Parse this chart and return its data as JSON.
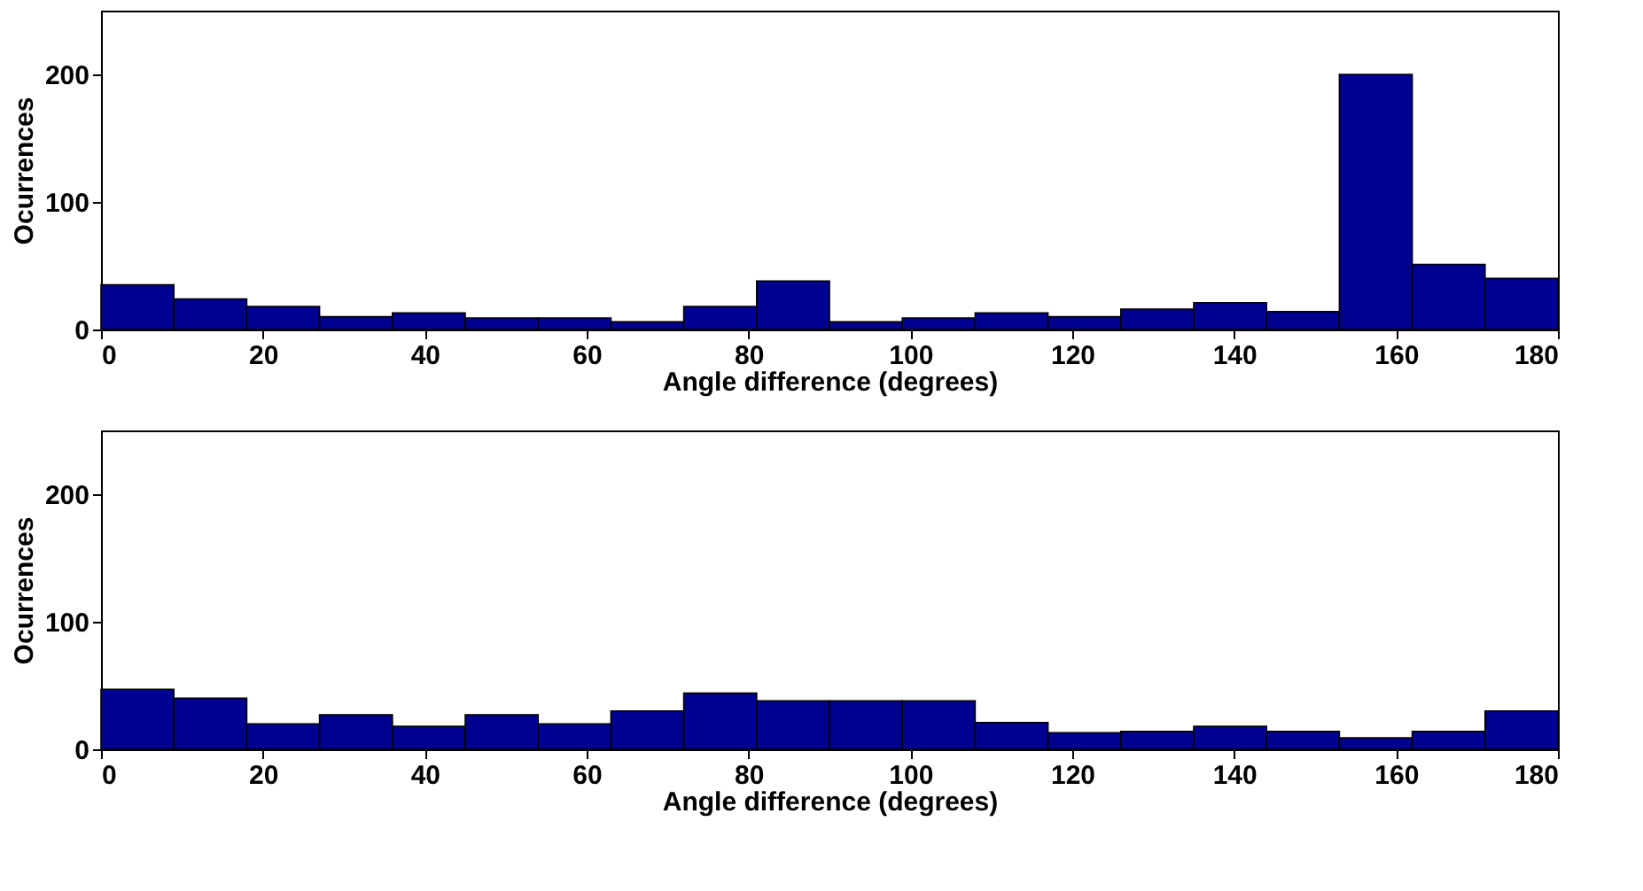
{
  "chart_data": [
    {
      "type": "histogram",
      "xlabel": "Angle difference (degrees)",
      "ylabel": "Ocurrences",
      "bins": [
        0,
        9,
        18,
        27,
        36,
        45,
        54,
        63,
        72,
        81,
        90,
        99,
        108,
        117,
        126,
        135,
        144,
        153,
        162,
        171,
        180
      ],
      "values": [
        35,
        24,
        18,
        10,
        13,
        9,
        9,
        6,
        18,
        38,
        6,
        9,
        13,
        10,
        16,
        21,
        14,
        200,
        51,
        40
      ],
      "color": "#000090",
      "xlim": [
        0,
        180
      ],
      "xticks": [
        0,
        20,
        40,
        60,
        80,
        100,
        120,
        140,
        160,
        180
      ],
      "ylim": [
        0,
        250
      ],
      "yticks": [
        0,
        100,
        200
      ],
      "grid": false
    },
    {
      "type": "histogram",
      "xlabel": "Angle difference (degrees)",
      "ylabel": "Ocurrences",
      "bins": [
        0,
        9,
        18,
        27,
        36,
        45,
        54,
        63,
        72,
        81,
        90,
        99,
        108,
        117,
        126,
        135,
        144,
        153,
        162,
        171,
        180
      ],
      "values": [
        47,
        40,
        20,
        27,
        18,
        27,
        20,
        30,
        44,
        38,
        38,
        38,
        21,
        13,
        14,
        18,
        14,
        9,
        14,
        30
      ],
      "color": "#000090",
      "xlim": [
        0,
        180
      ],
      "xticks": [
        0,
        20,
        40,
        60,
        80,
        100,
        120,
        140,
        160,
        180
      ],
      "ylim": [
        0,
        250
      ],
      "yticks": [
        0,
        100,
        200
      ],
      "grid": false
    }
  ]
}
